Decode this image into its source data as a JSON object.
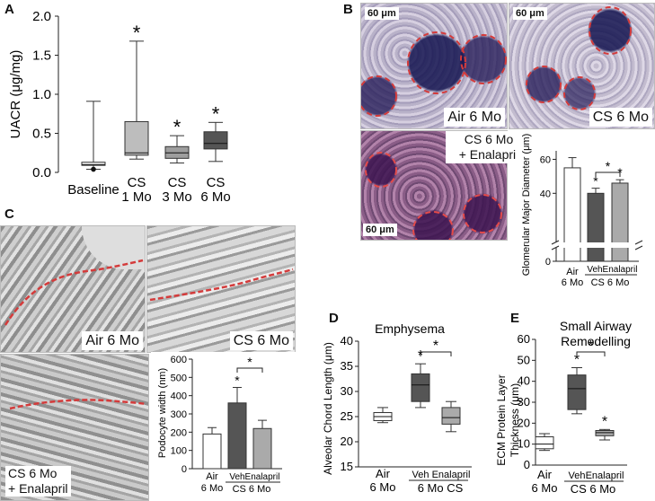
{
  "panels": {
    "a": {
      "label": "A",
      "ylabel": "UACR (μg/mg)",
      "yticks": [
        "0.0",
        "0.5",
        "1.0",
        "1.5",
        "2.0"
      ],
      "cats": [
        {
          "l1": "Baseline",
          "l2": ""
        },
        {
          "l1": "CS",
          "l2": "1 Mo"
        },
        {
          "l1": "CS",
          "l2": "3 Mo"
        },
        {
          "l1": "CS",
          "l2": "6 Mo"
        }
      ],
      "star": "*"
    },
    "b": {
      "label": "B",
      "scale": "60 μm",
      "caption_air": "Air 6 Mo",
      "caption_cs": "CS 6 Mo",
      "caption_ena_1": "CS 6 Mo",
      "caption_ena_2": "+ Enalapril",
      "ylabel": "Glomerular Major Diameter (μm)",
      "yticks": [
        "0",
        "40",
        "60"
      ],
      "air_1": "Air",
      "air_2": "6 Mo",
      "veh": "Veh",
      "enalapril": "Enalapril",
      "group": "CS 6 Mo",
      "star": "*"
    },
    "c": {
      "label": "C",
      "caption_air": "Air 6 Mo",
      "caption_cs": "CS 6 Mo",
      "caption_ena_1": "CS 6 Mo",
      "caption_ena_2": "+ Enalapril",
      "ylabel": "Podocyte width (nm)",
      "yticks": [
        "0",
        "100",
        "200",
        "300",
        "400",
        "500",
        "600"
      ],
      "air_1": "Air",
      "air_2": "6 Mo",
      "veh": "Veh",
      "enalapril": "Enalapril",
      "group": "CS 6 Mo",
      "star": "*"
    },
    "d": {
      "label": "D",
      "title": "Emphysema",
      "ylabel": "Alveolar Chord Length (μm)",
      "yticks": [
        "15",
        "20",
        "25",
        "30",
        "35",
        "40"
      ],
      "air_1": "Air",
      "air_2": "6 Mo",
      "veh": "Veh",
      "enalapril": "Enalapril",
      "group": "6 Mo CS",
      "star": "*"
    },
    "e": {
      "label": "E",
      "title_1": "Small Airway",
      "title_2": "Remodelling",
      "ylabel_1": "ECM Protein Layer",
      "ylabel_2": "Thickness (μm)",
      "yticks": [
        "0",
        "10",
        "20",
        "30",
        "40",
        "50",
        "60"
      ],
      "air_1": "Air",
      "air_2": "6 Mo",
      "veh": "Veh",
      "enalapril": "Enalapril",
      "group": "CS 6 Mo",
      "star": "*"
    }
  },
  "chart_data": [
    {
      "panel": "A",
      "type": "box",
      "ylabel": "UACR (μg/mg)",
      "ylim": [
        0,
        2.0
      ],
      "categories": [
        "Baseline",
        "CS 1 Mo",
        "CS 3 Mo",
        "CS 6 Mo"
      ],
      "boxes": [
        {
          "min": 0.04,
          "q1": 0.09,
          "median": 0.1,
          "q3": 0.13,
          "max": 0.91,
          "fill": "#ffffff"
        },
        {
          "min": 0.17,
          "q1": 0.22,
          "median": 0.25,
          "q3": 0.65,
          "max": 1.68,
          "fill": "#bdbdbd"
        },
        {
          "min": 0.12,
          "q1": 0.18,
          "median": 0.25,
          "q3": 0.33,
          "max": 0.47,
          "fill": "#9e9e9e"
        },
        {
          "min": 0.14,
          "q1": 0.3,
          "median": 0.37,
          "q3": 0.52,
          "max": 0.64,
          "fill": "#555555"
        }
      ],
      "outliers": [
        {
          "category": "Baseline",
          "y": 0.04
        }
      ],
      "significant": [
        false,
        true,
        true,
        true
      ]
    },
    {
      "panel": "B",
      "type": "bar",
      "ylabel": "Glomerular Major Diameter (μm)",
      "ylim": [
        0,
        65
      ],
      "axis_break": true,
      "categories": [
        "Air 6 Mo",
        "Veh",
        "Enalapril"
      ],
      "values": [
        55,
        40,
        46
      ],
      "errors": [
        6,
        3,
        2
      ],
      "fills": [
        "#ffffff",
        "#555555",
        "#aaaaaa"
      ],
      "significant": [
        false,
        true,
        true
      ],
      "brackets": [
        [
          "Veh",
          "Enalapril"
        ]
      ]
    },
    {
      "panel": "C",
      "type": "bar",
      "ylabel": "Podocyte width (nm)",
      "ylim": [
        0,
        600
      ],
      "categories": [
        "Air 6 Mo",
        "Veh",
        "Enalapril"
      ],
      "values": [
        190,
        360,
        220
      ],
      "errors": [
        35,
        85,
        45
      ],
      "fills": [
        "#ffffff",
        "#555555",
        "#aaaaaa"
      ],
      "significant": [
        false,
        true,
        false
      ],
      "brackets": [
        [
          "Veh",
          "Enalapril"
        ]
      ]
    },
    {
      "panel": "D",
      "type": "box",
      "title": "Emphysema",
      "ylabel": "Alveolar Chord Length (μm)",
      "ylim": [
        15,
        40
      ],
      "categories": [
        "Air 6 Mo",
        "Veh",
        "Enalapril"
      ],
      "boxes": [
        {
          "min": 23.8,
          "q1": 24.2,
          "median": 25.0,
          "q3": 25.8,
          "max": 26.8,
          "fill": "#ffffff"
        },
        {
          "min": 26.8,
          "q1": 28.0,
          "median": 31.3,
          "q3": 33.5,
          "max": 35.5,
          "fill": "#555555"
        },
        {
          "min": 22.0,
          "q1": 23.5,
          "median": 24.8,
          "q3": 26.8,
          "max": 28.0,
          "fill": "#aaaaaa"
        }
      ],
      "significant": [
        false,
        true,
        false
      ],
      "brackets": [
        [
          "Veh",
          "Enalapril"
        ]
      ]
    },
    {
      "panel": "E",
      "type": "box",
      "title": "Small Airway Remodelling",
      "ylabel": "ECM Protein Layer Thickness (μm)",
      "ylim": [
        0,
        60
      ],
      "categories": [
        "Air 6 Mo",
        "Veh",
        "Enalapril"
      ],
      "boxes": [
        {
          "min": 7.0,
          "q1": 7.8,
          "median": 10.0,
          "q3": 13.5,
          "max": 15.0,
          "fill": "#ffffff"
        },
        {
          "min": 24.5,
          "q1": 26.5,
          "median": 36.5,
          "q3": 43.0,
          "max": 46.5,
          "fill": "#555555"
        },
        {
          "min": 12.0,
          "q1": 14.0,
          "median": 15.5,
          "q3": 16.5,
          "max": 17.0,
          "fill": "#aaaaaa"
        }
      ],
      "significant": [
        false,
        true,
        true
      ],
      "brackets": [
        [
          "Veh",
          "Enalapril"
        ]
      ]
    }
  ]
}
